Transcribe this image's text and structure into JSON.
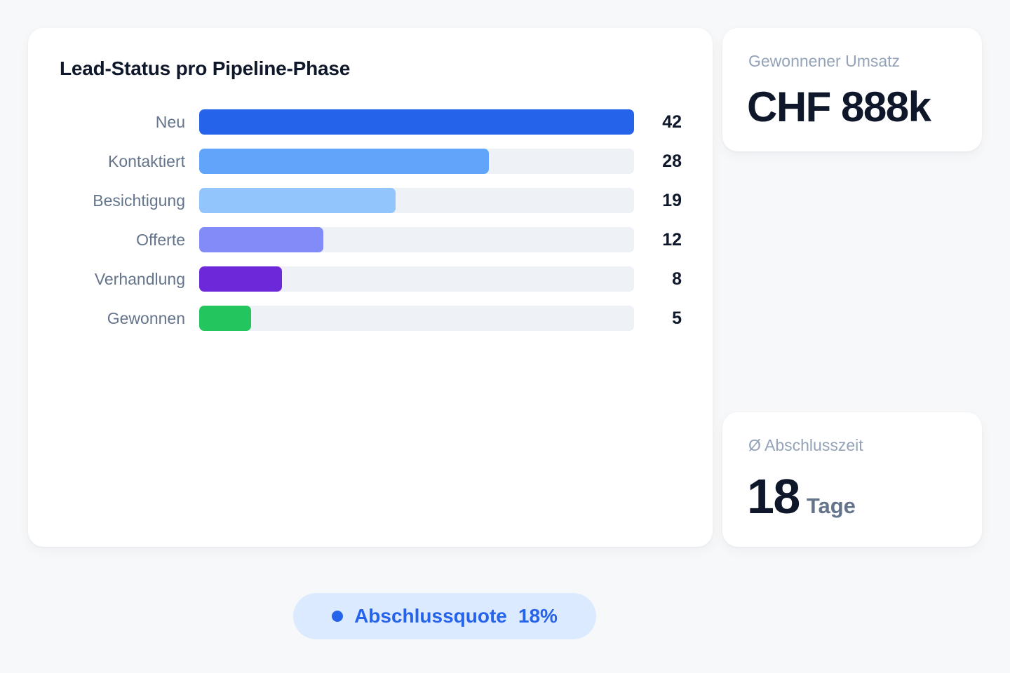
{
  "chart_data": {
    "type": "bar",
    "orientation": "horizontal",
    "title": "Lead-Status pro Pipeline-Phase",
    "categories": [
      "Neu",
      "Kontaktiert",
      "Besichtigung",
      "Offerte",
      "Verhandlung",
      "Gewonnen"
    ],
    "values": [
      42,
      28,
      19,
      12,
      8,
      5
    ],
    "colors": [
      "#2563eb",
      "#60a5fa",
      "#93c5fd",
      "#818cf8",
      "#6d28d9",
      "#22c55e"
    ],
    "xlim": [
      0,
      42
    ],
    "grid": false,
    "data_labels": true
  },
  "kpis": {
    "revenue": {
      "label": "Gewonnener Umsatz",
      "value": "CHF 888k"
    },
    "close_time": {
      "label": "Ø Abschlusszeit",
      "value": "18",
      "unit": "Tage"
    }
  },
  "badge": {
    "label": "Abschlussquote",
    "value": "18%",
    "dot_color": "#2563eb",
    "icon": "status-dot-icon"
  }
}
